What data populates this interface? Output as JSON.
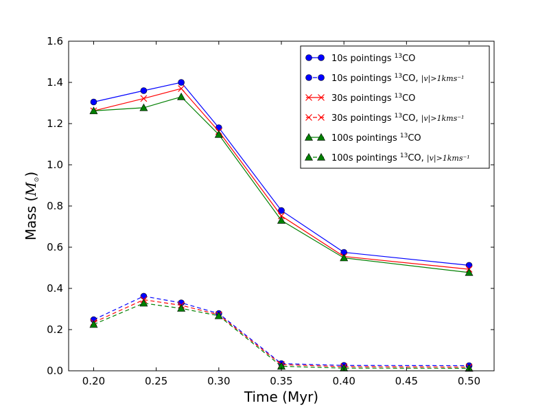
{
  "chart_data": {
    "type": "line",
    "title": "",
    "xlabel": "Time (Myr)",
    "ylabel_prefix": "Mass (",
    "ylabel_math": "M",
    "ylabel_sub": "⊙",
    "ylabel_suffix": ")",
    "xlim": [
      0.18,
      0.52
    ],
    "ylim": [
      0.0,
      1.6
    ],
    "x_ticks": [
      0.2,
      0.25,
      0.3,
      0.35,
      0.4,
      0.45,
      0.5
    ],
    "x_tick_labels": [
      "0.20",
      "0.25",
      "0.30",
      "0.35",
      "0.40",
      "0.45",
      "0.50"
    ],
    "y_ticks": [
      0.0,
      0.2,
      0.4,
      0.6,
      0.8,
      1.0,
      1.2,
      1.4,
      1.6
    ],
    "y_tick_labels": [
      "0.0",
      "0.2",
      "0.4",
      "0.6",
      "0.8",
      "1.0",
      "1.2",
      "1.4",
      "1.6"
    ],
    "grid": false,
    "legend_position": "top-right",
    "x": [
      0.2,
      0.24,
      0.27,
      0.3,
      0.35,
      0.4,
      0.5
    ],
    "series": [
      {
        "name": "10s pointings 13CO",
        "legend_base": "10s pointings ",
        "legend_sup": "13",
        "legend_tail": "CO",
        "legend_math": "",
        "color": "#0000ff",
        "marker": "circle",
        "dashed": false,
        "values": [
          1.305,
          1.36,
          1.4,
          1.18,
          0.778,
          0.575,
          0.512
        ]
      },
      {
        "name": "10s pointings 13CO, |v|>1kms-1",
        "legend_base": "10s pointings ",
        "legend_sup": "13",
        "legend_tail": "CO, ",
        "legend_math": "|v|>1kms⁻¹",
        "color": "#0000ff",
        "marker": "circle",
        "dashed": true,
        "values": [
          0.248,
          0.362,
          0.33,
          0.278,
          0.035,
          0.026,
          0.025
        ]
      },
      {
        "name": "30s pointings 13CO",
        "legend_base": "30s pointings ",
        "legend_sup": "13",
        "legend_tail": "CO",
        "legend_math": "",
        "color": "#ff0000",
        "marker": "x",
        "dashed": false,
        "values": [
          1.262,
          1.322,
          1.37,
          1.162,
          0.752,
          0.555,
          0.493
        ]
      },
      {
        "name": "30s pointings 13CO, |v|>1kms-1",
        "legend_base": "30s pointings ",
        "legend_sup": "13",
        "legend_tail": "CO, ",
        "legend_math": "|v|>1kms⁻¹",
        "color": "#ff0000",
        "marker": "x",
        "dashed": true,
        "values": [
          0.235,
          0.345,
          0.318,
          0.272,
          0.03,
          0.02,
          0.018
        ]
      },
      {
        "name": "100s pointings 13CO",
        "legend_base": "100s pointings ",
        "legend_sup": "13",
        "legend_tail": "CO",
        "legend_math": "",
        "color": "#007f00",
        "marker": "triangle",
        "dashed": false,
        "values": [
          1.262,
          1.277,
          1.33,
          1.147,
          0.73,
          0.548,
          0.477
        ]
      },
      {
        "name": "100s pointings 13CO, |v|>1kms-1",
        "legend_base": "100s pointings ",
        "legend_sup": "13",
        "legend_tail": "CO, ",
        "legend_math": "|v|>1kms⁻¹",
        "color": "#007f00",
        "marker": "triangle",
        "dashed": true,
        "values": [
          0.225,
          0.328,
          0.303,
          0.267,
          0.022,
          0.013,
          0.012
        ]
      }
    ]
  }
}
